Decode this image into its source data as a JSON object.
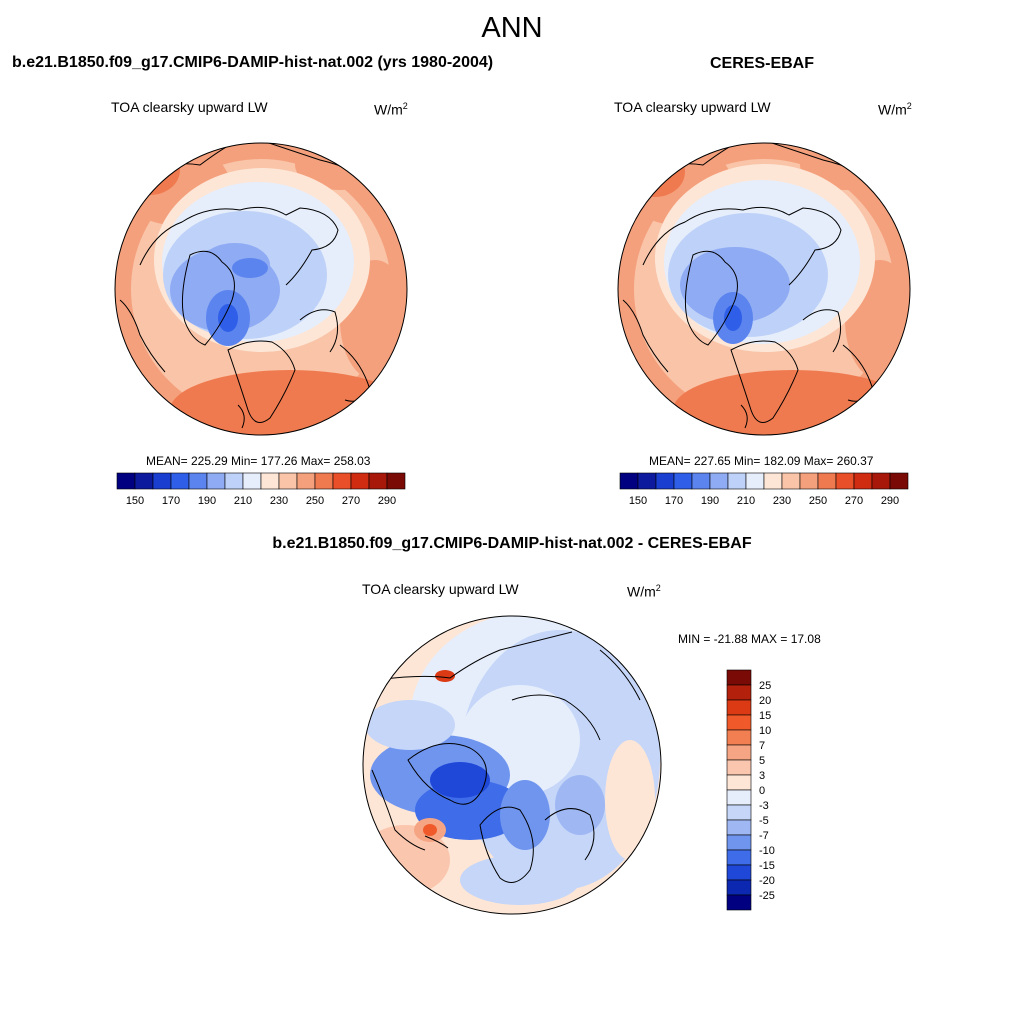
{
  "page": {
    "title": "ANN"
  },
  "panels": [
    {
      "title": "b.e21.B1850.f09_g17.CMIP6-DAMIP-hist-nat.002 (yrs 1980-2004)",
      "variable": "TOA clearsky upward LW",
      "units": "W/m",
      "units_sup": "2",
      "stats": {
        "mean": "225.29",
        "min": "177.26",
        "max": "258.03"
      },
      "stats_text": "MEAN= 225.29  Min= 177.26  Max= 258.03"
    },
    {
      "title": "CERES-EBAF",
      "variable": "TOA clearsky upward LW",
      "units": "W/m",
      "units_sup": "2",
      "stats": {
        "mean": "227.65",
        "min": "182.09",
        "max": "260.37"
      },
      "stats_text": "MEAN= 227.65  Min= 182.09  Max= 260.37"
    },
    {
      "title": "b.e21.B1850.f09_g17.CMIP6-DAMIP-hist-nat.002 - CERES-EBAF",
      "variable": "TOA clearsky upward LW",
      "units": "W/m",
      "units_sup": "2",
      "stats": {
        "min": "-21.88",
        "max": "17.08"
      },
      "stats_text": "MIN = -21.88 MAX =  17.08"
    }
  ],
  "colorbar_abs": {
    "tick_labels": [
      "150",
      "170",
      "190",
      "210",
      "230",
      "250",
      "270",
      "290"
    ],
    "colors": [
      "#000080",
      "#0d1a9e",
      "#1a3ed0",
      "#2f5fe8",
      "#5b84ee",
      "#8fabf4",
      "#bed1f8",
      "#e6eefb",
      "#fde6d6",
      "#f9c4a8",
      "#f5a07c",
      "#f07a4f",
      "#e94f28",
      "#cf2c12",
      "#a7180a",
      "#7a0a05"
    ]
  },
  "colorbar_diff": {
    "tick_labels": [
      "25",
      "20",
      "15",
      "10",
      "7",
      "5",
      "3",
      "0",
      "-3",
      "-5",
      "-7",
      "-10",
      "-15",
      "-20",
      "-25"
    ],
    "colors": [
      "#7a0a05",
      "#b3200c",
      "#dc3a14",
      "#f05a2a",
      "#f27f52",
      "#f5a583",
      "#fac6ae",
      "#fde6d6",
      "#e6eefb",
      "#c5d6f8",
      "#9fb8f4",
      "#6f95ef",
      "#3f6ce8",
      "#1f47d8",
      "#0c27b0",
      "#000080"
    ]
  },
  "colors": {
    "land_outline": "#000000",
    "warm": "#f08a64",
    "cool": "#7fa3f0"
  }
}
